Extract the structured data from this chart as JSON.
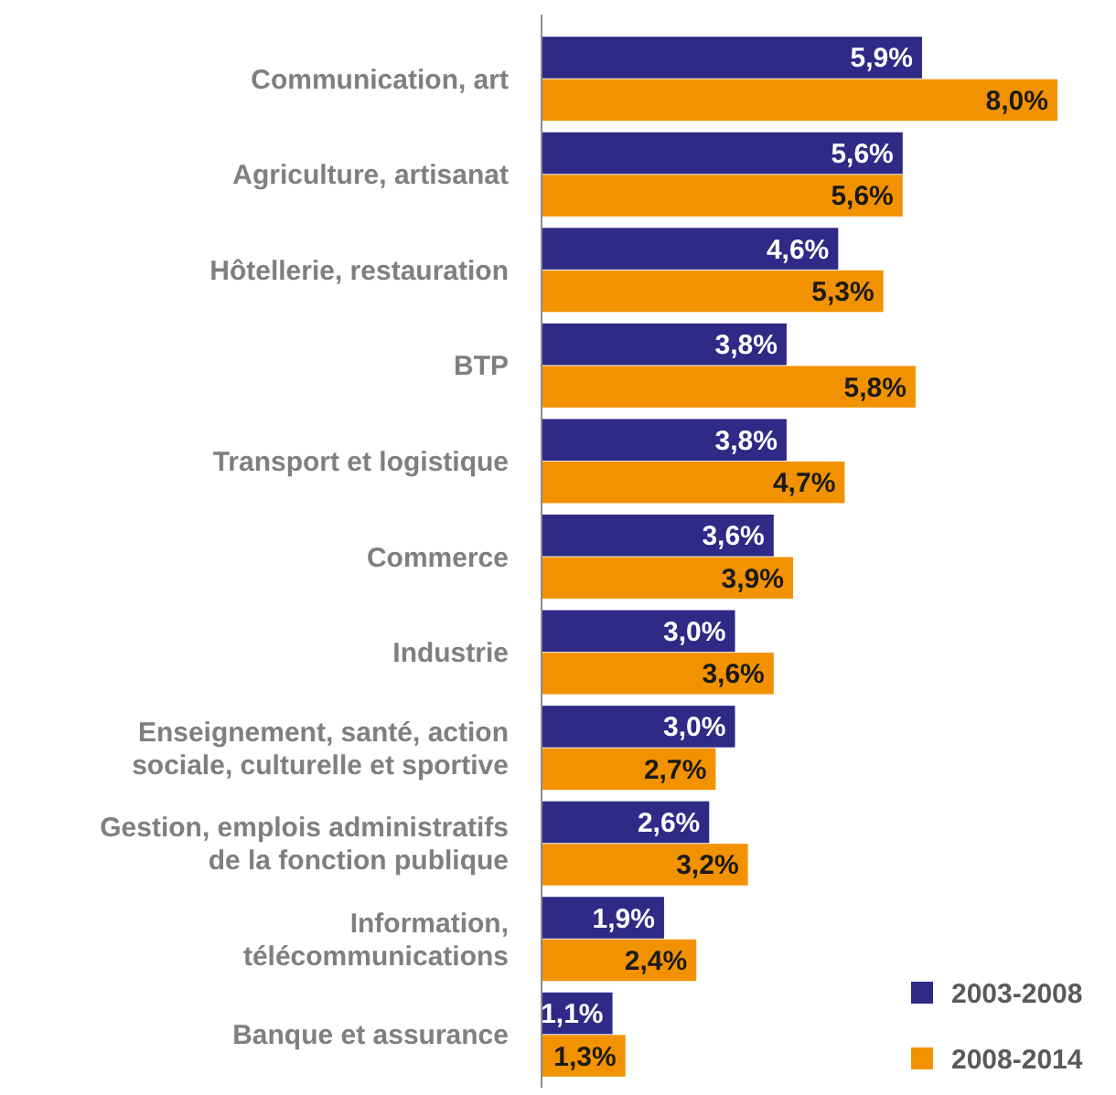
{
  "chart_data": {
    "type": "bar",
    "orientation": "horizontal",
    "categories": [
      "Communication, art",
      "Agriculture, artisanat",
      "Hôtellerie, restauration",
      "BTP",
      "Transport et logistique",
      "Commerce",
      "Industrie",
      "Enseignement, santé, action sociale, culturelle et sportive",
      "Gestion, emplois administratifs de la fonction publique",
      "Information, télécommunications",
      "Banque et assurance"
    ],
    "series": [
      {
        "name": "2003-2008",
        "color": "#2e2a86",
        "values": [
          5.9,
          5.6,
          4.6,
          3.8,
          3.8,
          3.6,
          3.0,
          3.0,
          2.6,
          1.9,
          1.1
        ],
        "value_labels": [
          "5,9%",
          "5,6%",
          "4,6%",
          "3,8%",
          "3,8%",
          "3,6%",
          "3,0%",
          "3,0%",
          "2,6%",
          "1,9%",
          "1,1%"
        ]
      },
      {
        "name": "2008-2014",
        "color": "#f39200",
        "values": [
          8.0,
          5.6,
          5.3,
          5.8,
          4.7,
          3.9,
          3.6,
          2.7,
          3.2,
          2.4,
          1.3
        ],
        "value_labels": [
          "8,0%",
          "5,6%",
          "5,3%",
          "5,8%",
          "4,7%",
          "3,9%",
          "3,6%",
          "2,7%",
          "3,2%",
          "2,4%",
          "1,3%"
        ]
      }
    ],
    "legend": "bottom right",
    "grid": false
  }
}
